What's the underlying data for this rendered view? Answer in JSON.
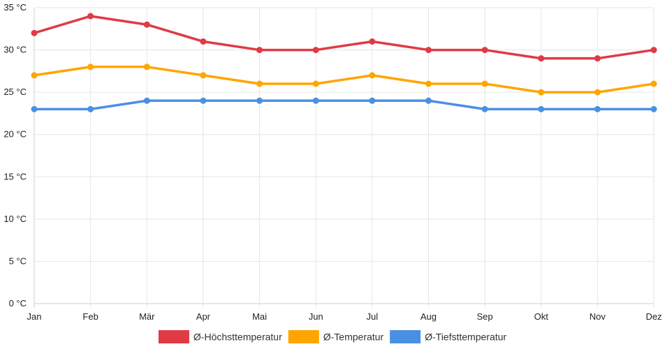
{
  "chart_data": {
    "type": "line",
    "categories": [
      "Jan",
      "Feb",
      "Mär",
      "Apr",
      "Mai",
      "Jun",
      "Jul",
      "Aug",
      "Sep",
      "Okt",
      "Nov",
      "Dez"
    ],
    "y_ticks": [
      "0 °C",
      "5 °C",
      "10 °C",
      "15 °C",
      "20 °C",
      "25 °C",
      "30 °C",
      "35 °C"
    ],
    "ylim": [
      0,
      35
    ],
    "grid": true,
    "legend_position": "bottom",
    "series": [
      {
        "name": "Ø-Höchsttemperatur",
        "color": "#e03a45",
        "values": [
          32,
          34,
          33,
          31,
          30,
          30,
          31,
          30,
          30,
          29,
          29,
          30
        ]
      },
      {
        "name": "Ø-Temperatur",
        "color": "#ffa500",
        "values": [
          27,
          28,
          28,
          27,
          26,
          26,
          27,
          26,
          26,
          25,
          25,
          26
        ]
      },
      {
        "name": "Ø-Tiefsttemperatur",
        "color": "#4a90e2",
        "values": [
          23,
          23,
          24,
          24,
          24,
          24,
          24,
          24,
          23,
          23,
          23,
          23
        ]
      }
    ]
  }
}
